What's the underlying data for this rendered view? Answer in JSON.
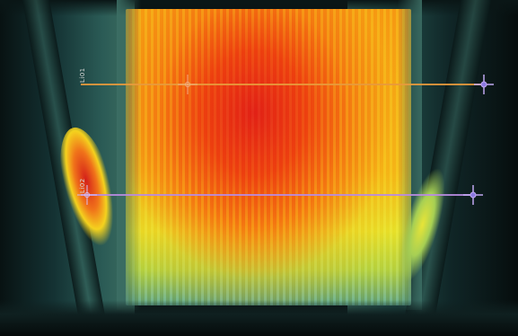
{
  "image": {
    "subject": "thermal-camera-view",
    "palette": [
      "#0b1414",
      "#3d6f61",
      "#b6d64a",
      "#f6c21c",
      "#f58a14",
      "#e2261a"
    ]
  },
  "measurements": [
    {
      "label": "Li01",
      "color": "#e89a3c"
    },
    {
      "label": "Li02",
      "color": "#b88be0"
    }
  ],
  "icons": {
    "cursor": "crosshair-icon"
  }
}
